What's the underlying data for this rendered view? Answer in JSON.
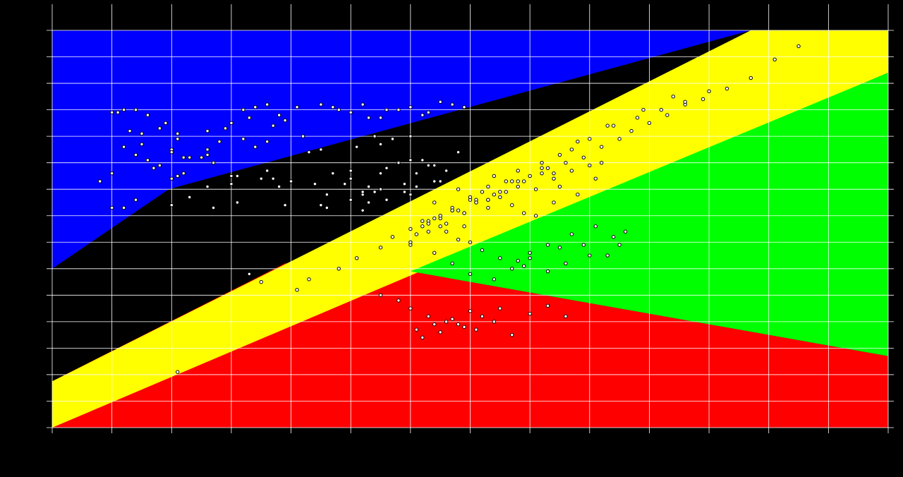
{
  "chart_data": {
    "type": "scatter",
    "title": "",
    "xlabel": "",
    "ylabel": "",
    "xlim": [
      0,
      14
    ],
    "ylim": [
      0,
      15
    ],
    "grid": true,
    "colors": {
      "background": "#000000",
      "grid": "#ffffff",
      "blue_region": "#0000ff",
      "red_region": "#ff0000",
      "yellow_region": "#ffff00",
      "green_region": "#00ff00",
      "point_fill": "#ffffff",
      "point_stroke": "#000000"
    },
    "regions": [
      {
        "name": "blue",
        "color": "#0000ff",
        "polygon": [
          [
            0,
            15
          ],
          [
            11.7,
            15
          ],
          [
            1.95,
            9.0
          ],
          [
            0,
            6.0
          ]
        ]
      },
      {
        "name": "red",
        "color": "#ff0000",
        "polygon": [
          [
            0,
            6.0
          ],
          [
            3.9,
            6.2
          ],
          [
            0,
            1.75
          ],
          [
            0,
            0
          ],
          [
            14,
            0
          ],
          [
            14,
            2.7
          ],
          [
            6,
            5.9
          ],
          [
            3.9,
            6.2
          ]
        ]
      },
      {
        "name": "yellow",
        "color": "#ffff00",
        "polygon": [
          [
            0,
            1.75
          ],
          [
            11.7,
            15
          ],
          [
            14,
            15
          ],
          [
            14,
            13.4
          ],
          [
            0,
            0
          ]
        ]
      },
      {
        "name": "green",
        "color": "#00ff00",
        "polygon": [
          [
            6,
            5.9
          ],
          [
            14,
            13.4
          ],
          [
            14,
            2.7
          ]
        ]
      }
    ],
    "x": [
      1.0,
      1.1,
      1.0,
      1.2,
      1.4,
      1.5,
      1.5,
      1.3,
      1.6,
      1.9,
      1.8,
      2.1,
      2.0,
      2.2,
      2.5,
      2.8,
      2.6,
      3.0,
      2.9,
      3.3,
      3.6,
      3.2,
      3.4,
      3.8,
      3.9,
      3.7,
      4.2,
      4.5,
      4.1,
      4.8,
      5.0,
      4.7,
      5.2,
      5.6,
      5.3,
      5.8,
      5.5,
      6.0,
      6.2,
      6.5,
      6.3,
      6.9,
      6.7,
      1.4,
      1.6,
      1.7,
      1.8,
      2.0,
      2.3,
      2.6,
      2.2,
      2.7,
      3.1,
      3.0,
      3.6,
      3.5,
      4.0,
      3.8,
      4.4,
      4.6,
      4.9,
      5.0,
      5.3,
      5.4,
      5.2,
      5.5,
      5.8,
      6.2,
      6.5,
      6.4,
      6.8,
      1.2,
      1.5,
      2.1,
      2.6,
      3.2,
      3.4,
      3.6,
      4.3,
      4.5,
      5.1,
      5.4,
      5.5,
      5.7,
      6.0,
      1.0,
      0.8,
      2.0,
      2.1,
      2.6,
      3.0,
      3.7,
      4.7,
      5.0,
      5.6,
      6.0,
      6.3,
      1.4,
      1.2,
      2.0,
      2.3,
      2.7,
      3.1,
      3.9,
      4.6,
      5.2,
      5.0,
      4.5,
      5.3,
      5.6,
      5.9,
      6.1,
      6.4,
      6.8,
      7.1,
      6.6,
      6.1,
      5.9,
      5.5,
      5.2,
      6.0,
      6.4,
      6.7,
      7.0,
      7.2,
      7.5,
      7.7,
      7.9,
      8.1,
      8.4,
      7.3,
      7.6,
      8.0,
      8.3,
      8.6,
      8.9,
      9.2,
      9.5,
      9.7,
      10.0,
      10.3,
      10.6,
      10.9,
      11.3,
      11.7,
      12.1,
      12.5,
      7.4,
      7.8,
      8.2,
      8.7,
      9.0,
      9.4,
      9.8,
      10.2,
      10.6,
      11.0,
      10.4,
      9.9,
      9.3,
      8.8,
      8.5,
      8.2,
      7.7,
      7.3,
      6.9,
      6.6,
      6.3,
      6.0,
      5.7,
      5.5,
      5.1,
      4.8,
      4.3,
      4.1,
      3.5,
      3.3,
      2.1,
      7.8,
      8.0,
      8.3,
      8.7,
      9.1,
      9.4,
      9.5,
      9.0,
      8.6,
      8.3,
      7.9,
      7.5,
      7.2,
      7.0,
      6.8,
      6.5,
      6.3,
      6.1,
      6.0,
      6.4,
      6.7,
      7.0,
      7.4,
      7.7,
      8.0,
      8.5,
      9.6,
      9.3,
      8.9,
      6.2,
      6.5,
      6.9,
      7.3,
      6.0,
      6.3,
      6.7,
      7.0,
      7.3,
      7.6,
      7.9,
      8.2,
      8.5,
      8.8,
      9.1,
      9.2,
      8.4,
      7.8,
      7.5,
      7.1,
      6.8,
      6.5,
      6.2,
      6.9,
      6.6,
      6.4,
      6.7,
      7.1,
      7.4,
      7.8,
      8.1,
      8.4,
      8.7,
      9.0,
      6.0,
      6.3,
      6.6,
      6.9,
      7.2,
      7.5,
      7.0,
      6.7,
      6.4,
      6.1,
      5.8,
      5.5,
      6.2,
      6.5,
      6.8,
      7.1,
      7.4,
      7.7,
      8.0,
      8.3,
      8.6
    ],
    "y": [
      11.9,
      11.9,
      8.3,
      12.0,
      12.0,
      11.1,
      11.1,
      11.2,
      11.8,
      11.5,
      11.3,
      11.1,
      10.5,
      10.2,
      10.2,
      10.8,
      11.2,
      11.5,
      11.3,
      11.7,
      12.2,
      12.0,
      12.1,
      11.8,
      11.6,
      11.4,
      11.0,
      12.2,
      12.1,
      12.0,
      11.9,
      12.1,
      12.2,
      12.0,
      11.7,
      12.0,
      11.7,
      12.1,
      11.8,
      12.3,
      11.9,
      12.1,
      12.2,
      10.3,
      10.1,
      9.8,
      9.9,
      10.4,
      10.2,
      10.3,
      9.6,
      10.0,
      9.5,
      9.2,
      9.7,
      9.4,
      9.3,
      9.1,
      9.2,
      8.8,
      9.2,
      9.4,
      9.1,
      8.9,
      8.8,
      9.6,
      10.0,
      10.1,
      9.3,
      9.9,
      10.4,
      10.6,
      10.7,
      10.9,
      10.5,
      10.9,
      10.6,
      10.8,
      10.4,
      10.5,
      10.6,
      11.0,
      10.7,
      10.9,
      11.0,
      9.6,
      9.3,
      9.4,
      9.5,
      9.1,
      9.5,
      9.4,
      9.6,
      9.7,
      9.8,
      10.1,
      9.9,
      8.6,
      8.3,
      8.4,
      8.7,
      8.3,
      8.5,
      8.4,
      8.3,
      8.9,
      8.6,
      8.4,
      8.5,
      8.6,
      8.9,
      9.1,
      9.3,
      9.0,
      8.5,
      9.7,
      9.6,
      9.2,
      9.0,
      8.2,
      8.8,
      8.5,
      8.2,
      8.6,
      8.9,
      8.7,
      8.4,
      8.1,
      8.0,
      8.5,
      9.1,
      9.3,
      9.5,
      9.8,
      10.0,
      10.2,
      10.6,
      10.9,
      11.2,
      11.5,
      11.8,
      12.2,
      12.4,
      12.8,
      13.2,
      13.9,
      14.4,
      9.5,
      9.7,
      10.0,
      10.5,
      10.9,
      11.4,
      11.7,
      12.0,
      12.3,
      12.7,
      12.5,
      12.0,
      11.4,
      10.8,
      10.3,
      9.8,
      9.3,
      8.6,
      8.1,
      7.7,
      7.4,
      7.5,
      7.2,
      6.8,
      6.4,
      6.0,
      5.6,
      5.2,
      5.5,
      5.8,
      2.1,
      6.3,
      6.6,
      6.9,
      7.3,
      7.6,
      7.2,
      6.9,
      6.5,
      6.2,
      5.9,
      6.1,
      6.4,
      6.7,
      7.0,
      7.1,
      7.6,
      7.8,
      7.3,
      6.9,
      6.6,
      6.2,
      5.8,
      5.6,
      6.0,
      6.4,
      6.8,
      7.4,
      6.5,
      6.9,
      7.6,
      7.9,
      8.1,
      8.3,
      7.0,
      7.7,
      8.3,
      8.7,
      8.6,
      8.9,
      9.3,
      9.6,
      9.1,
      8.8,
      9.4,
      10.0,
      9.6,
      9.3,
      8.9,
      8.6,
      8.2,
      8.0,
      7.8,
      7.6,
      7.4,
      7.9,
      8.2,
      8.5,
      8.8,
      9.1,
      9.0,
      9.4,
      9.7,
      9.9,
      4.5,
      4.2,
      4.0,
      3.8,
      4.2,
      4.5,
      4.4,
      4.1,
      3.9,
      3.7,
      4.8,
      5.0,
      3.4,
      3.6,
      3.9,
      3.7,
      4.0,
      3.5,
      4.3,
      4.6,
      4.2
    ]
  }
}
